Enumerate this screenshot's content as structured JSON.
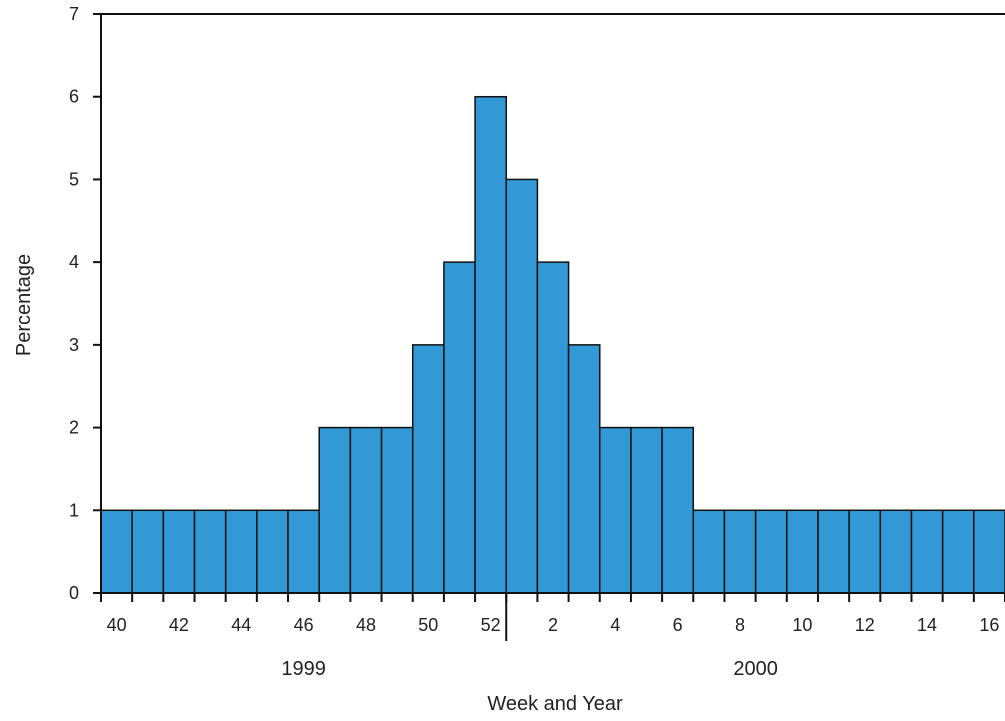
{
  "chart_data": {
    "type": "bar",
    "title": "",
    "xlabel": "Week and Year",
    "ylabel": "Percentage",
    "ylim": [
      0,
      7
    ],
    "yticks": [
      "0",
      "1",
      "2",
      "3",
      "4",
      "5",
      "6",
      "7"
    ],
    "categories": [
      "40",
      "41",
      "42",
      "43",
      "44",
      "45",
      "46",
      "47",
      "48",
      "49",
      "50",
      "51",
      "52",
      "1",
      "2",
      "3",
      "4",
      "5",
      "6",
      "7",
      "8",
      "9",
      "10",
      "11",
      "12",
      "13",
      "14",
      "15",
      "16"
    ],
    "values": [
      1,
      1,
      1,
      1,
      1,
      1,
      1,
      2,
      2,
      2,
      3,
      4,
      6,
      5,
      4,
      3,
      2,
      2,
      2,
      1,
      1,
      1,
      1,
      1,
      1,
      1,
      1,
      1,
      1
    ],
    "xtick_labels": [
      "40",
      "42",
      "44",
      "46",
      "48",
      "50",
      "52",
      "2",
      "4",
      "6",
      "8",
      "10",
      "12",
      "14",
      "16"
    ],
    "year_groups": [
      {
        "label": "1999",
        "from": "40",
        "to": "52"
      },
      {
        "label": "2000",
        "from": "1",
        "to": "16"
      }
    ],
    "grid": false,
    "legend": "none",
    "bar_color": "#3399d6",
    "edge_color": "#111111"
  }
}
